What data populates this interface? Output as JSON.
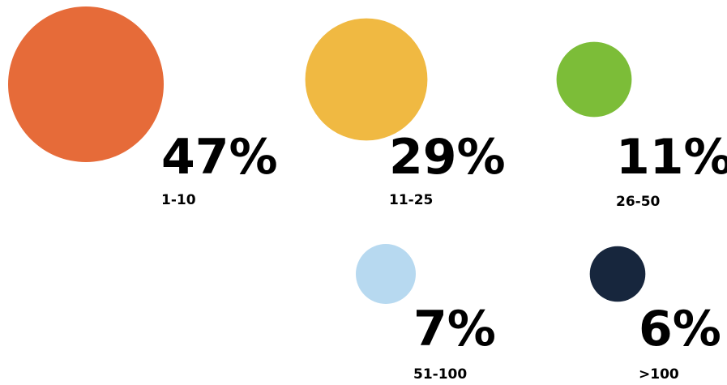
{
  "chart_data": {
    "type": "bubble",
    "title": "",
    "xlabel": "",
    "ylabel": "",
    "legend": "none",
    "grid": false,
    "categories": [
      "1-10",
      "11-25",
      "26-50",
      "51-100",
      ">100"
    ],
    "values": [
      47,
      29,
      11,
      7,
      6
    ],
    "value_labels": [
      "47%",
      "29%",
      "11%",
      "7%",
      "6%"
    ],
    "colors": [
      "#e66b39",
      "#f0b942",
      "#7cbd38",
      "#b7d9f0",
      "#17263d"
    ]
  }
}
